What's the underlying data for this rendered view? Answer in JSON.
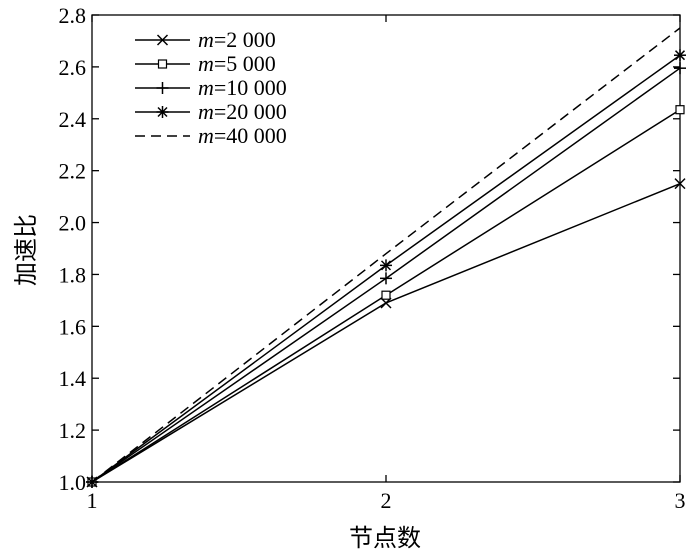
{
  "chart_data": {
    "type": "line",
    "xlabel": "节点数",
    "ylabel": "加速比",
    "x": [
      1,
      2,
      3
    ],
    "xticks": [
      "1",
      "2",
      "3"
    ],
    "xlim": [
      1,
      3
    ],
    "ylim": [
      1.0,
      2.8
    ],
    "yticks": [
      "1.0",
      "1.2",
      "1.4",
      "1.6",
      "1.8",
      "2.0",
      "2.2",
      "2.4",
      "2.6",
      "2.8"
    ],
    "grid": false,
    "legend_position": "top-left",
    "series": [
      {
        "name_var": "m",
        "name_value": "=2 000",
        "marker": "x",
        "dash": "solid",
        "values": [
          1.0,
          1.69,
          2.15
        ]
      },
      {
        "name_var": "m",
        "name_value": "=5 000",
        "marker": "square",
        "dash": "solid",
        "values": [
          1.0,
          1.72,
          2.435
        ]
      },
      {
        "name_var": "m",
        "name_value": "=10 000",
        "marker": "plus",
        "dash": "solid",
        "values": [
          1.0,
          1.785,
          2.595
        ]
      },
      {
        "name_var": "m",
        "name_value": "=20 000",
        "marker": "star",
        "dash": "solid",
        "values": [
          1.0,
          1.835,
          2.645
        ]
      },
      {
        "name_var": "m",
        "name_value": "=40 000",
        "marker": "none",
        "dash": "dashed",
        "values": [
          1.0,
          1.88,
          2.75
        ]
      }
    ]
  }
}
